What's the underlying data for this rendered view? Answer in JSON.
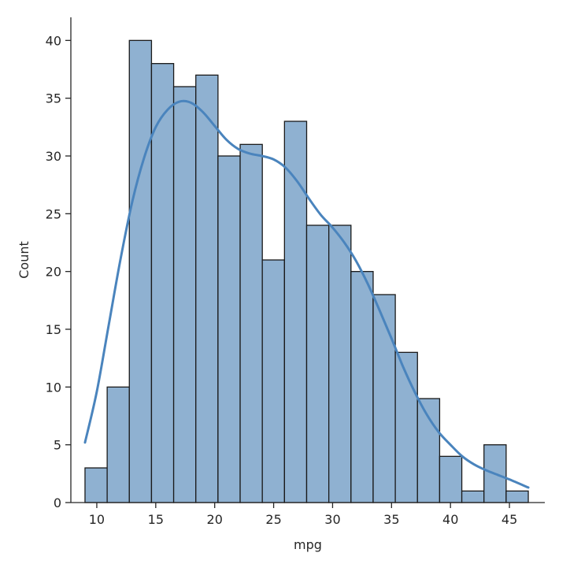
{
  "chart_data": {
    "type": "bar",
    "subtype": "histogram-with-kde",
    "title": "",
    "xlabel": "mpg",
    "ylabel": "Count",
    "xlim": [
      7.8,
      48.0
    ],
    "ylim": [
      0,
      42
    ],
    "xticks": [
      10,
      15,
      20,
      25,
      30,
      35,
      40,
      45
    ],
    "yticks": [
      0,
      5,
      10,
      15,
      20,
      25,
      30,
      35,
      40
    ],
    "grid": false,
    "legend": "none",
    "bar_color": "#8fb1d1",
    "line_color": "#4a84bd",
    "bins": [
      {
        "start": 9.0,
        "end": 10.88,
        "count": 3
      },
      {
        "start": 10.88,
        "end": 12.76,
        "count": 10
      },
      {
        "start": 12.76,
        "end": 14.64,
        "count": 40
      },
      {
        "start": 14.64,
        "end": 16.52,
        "count": 38
      },
      {
        "start": 16.52,
        "end": 18.4,
        "count": 36
      },
      {
        "start": 18.4,
        "end": 20.28,
        "count": 37
      },
      {
        "start": 20.28,
        "end": 22.16,
        "count": 30
      },
      {
        "start": 22.16,
        "end": 24.04,
        "count": 31
      },
      {
        "start": 24.04,
        "end": 25.92,
        "count": 21
      },
      {
        "start": 25.92,
        "end": 27.8,
        "count": 33
      },
      {
        "start": 27.8,
        "end": 29.68,
        "count": 24
      },
      {
        "start": 29.68,
        "end": 31.56,
        "count": 24
      },
      {
        "start": 31.56,
        "end": 33.44,
        "count": 20
      },
      {
        "start": 33.44,
        "end": 35.32,
        "count": 18
      },
      {
        "start": 35.32,
        "end": 37.2,
        "count": 13
      },
      {
        "start": 37.2,
        "end": 39.08,
        "count": 9
      },
      {
        "start": 39.08,
        "end": 40.96,
        "count": 4
      },
      {
        "start": 40.96,
        "end": 42.84,
        "count": 1
      },
      {
        "start": 42.84,
        "end": 44.72,
        "count": 5
      },
      {
        "start": 44.72,
        "end": 46.6,
        "count": 1
      }
    ],
    "kde": {
      "x": [
        9.0,
        10.0,
        11.0,
        12.0,
        13.0,
        14.0,
        15.0,
        16.0,
        17.0,
        18.0,
        19.0,
        20.0,
        21.0,
        22.0,
        23.0,
        24.0,
        25.0,
        26.0,
        27.0,
        28.0,
        29.0,
        30.0,
        31.0,
        32.0,
        33.0,
        34.0,
        35.0,
        36.0,
        37.0,
        38.0,
        39.0,
        40.0,
        41.0,
        42.0,
        43.0,
        44.0,
        45.0,
        46.6
      ],
      "y": [
        5.2,
        9.6,
        15.3,
        21.0,
        26.0,
        29.8,
        32.5,
        34.0,
        34.7,
        34.6,
        33.8,
        32.6,
        31.4,
        30.6,
        30.2,
        30.0,
        29.7,
        29.0,
        27.8,
        26.3,
        24.9,
        23.8,
        22.5,
        20.9,
        18.9,
        16.6,
        14.2,
        11.7,
        9.5,
        7.6,
        6.1,
        5.0,
        4.0,
        3.3,
        2.8,
        2.4,
        2.0,
        1.3
      ]
    }
  }
}
